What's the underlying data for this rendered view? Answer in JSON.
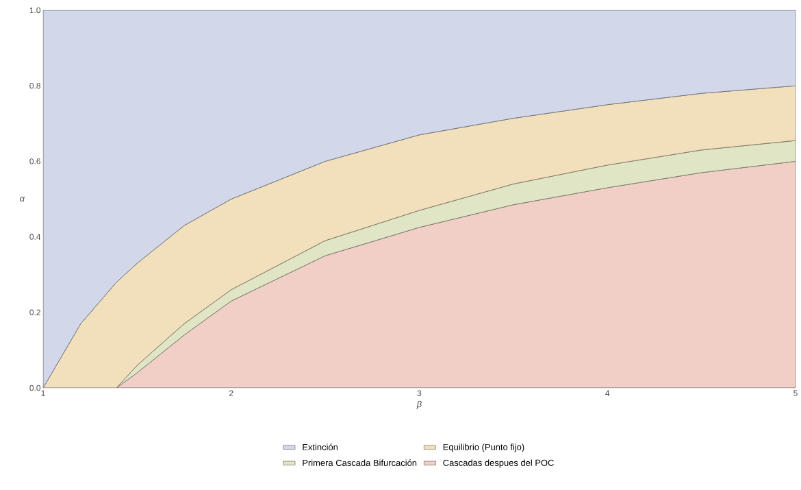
{
  "chart_data": {
    "type": "area",
    "stacked": true,
    "xlabel": "β",
    "ylabel": "α",
    "x": [
      1,
      1.2,
      1.39,
      1.5,
      1.75,
      2,
      2.5,
      3,
      3.5,
      4,
      4.5,
      5
    ],
    "series": [
      {
        "name": "Cascadas despues del POC",
        "color": "#f2cfc6",
        "values": [
          0,
          0,
          0,
          0.04,
          0.14,
          0.23,
          0.35,
          0.425,
          0.485,
          0.53,
          0.57,
          0.6
        ]
      },
      {
        "name": "Primera Cascada Bifurcación",
        "color": "#e0e5c5",
        "values": [
          0,
          0,
          0,
          0.02,
          0.03,
          0.03,
          0.04,
          0.045,
          0.055,
          0.06,
          0.06,
          0.055
        ]
      },
      {
        "name": "Equilibrio (Punto fijo)",
        "color": "#f2dfbc",
        "values": [
          0,
          0.17,
          0.28,
          0.27,
          0.26,
          0.24,
          0.21,
          0.2,
          0.174,
          0.16,
          0.15,
          0.145
        ]
      },
      {
        "name": "Extinción",
        "color": "#d2d8ea",
        "values": [
          1,
          0.83,
          0.72,
          0.67,
          0.57,
          0.5,
          0.4,
          0.33,
          0.286,
          0.25,
          0.22,
          0.2
        ]
      }
    ],
    "xlim": [
      1,
      5
    ],
    "ylim": [
      0,
      1
    ],
    "xticks": [
      1,
      2,
      3,
      4,
      5
    ],
    "yticks": [
      {
        "value": 0,
        "label": "0.0"
      },
      {
        "value": 0.2,
        "label": "0.2"
      },
      {
        "value": 0.4,
        "label": "0.4"
      },
      {
        "value": 0.6,
        "label": "0.6"
      },
      {
        "value": 0.8,
        "label": "0.8"
      },
      {
        "value": 1,
        "label": "1.0"
      }
    ],
    "legend": "bottom",
    "grid": false
  }
}
